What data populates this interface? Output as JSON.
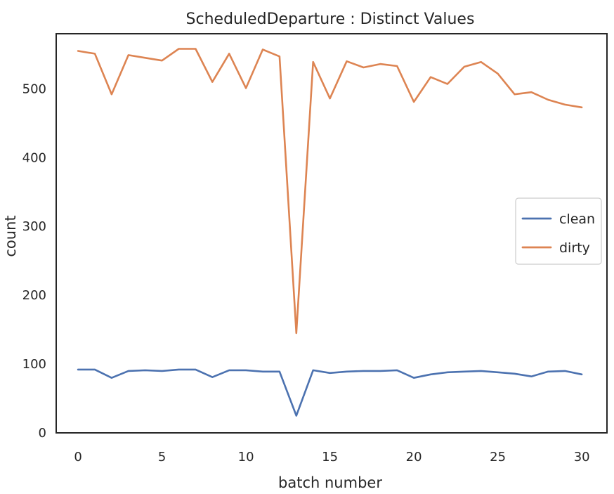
{
  "chart_data": {
    "type": "line",
    "title": "ScheduledDeparture : Distinct Values",
    "xlabel": "batch number",
    "ylabel": "count",
    "xlim": [
      -1.3,
      31.5
    ],
    "ylim": [
      0,
      580
    ],
    "x_ticks": [
      0,
      5,
      10,
      15,
      20,
      25,
      30
    ],
    "y_ticks": [
      0,
      100,
      200,
      300,
      400,
      500
    ],
    "grid": false,
    "legend_position": "center-right",
    "x": [
      0,
      1,
      2,
      3,
      4,
      5,
      6,
      7,
      8,
      9,
      10,
      11,
      12,
      13,
      14,
      15,
      16,
      17,
      18,
      19,
      20,
      21,
      22,
      23,
      24,
      25,
      26,
      27,
      28,
      29,
      30
    ],
    "series": [
      {
        "name": "clean",
        "color": "#4c72b0",
        "values": [
          92,
          92,
          80,
          90,
          91,
          90,
          92,
          92,
          81,
          91,
          91,
          89,
          89,
          25,
          91,
          87,
          89,
          90,
          90,
          91,
          80,
          85,
          88,
          89,
          90,
          88,
          86,
          82,
          89,
          90,
          85
        ]
      },
      {
        "name": "dirty",
        "color": "#dd8452",
        "values": [
          555,
          551,
          492,
          549,
          545,
          541,
          558,
          558,
          510,
          551,
          501,
          557,
          547,
          145,
          539,
          486,
          540,
          531,
          536,
          533,
          481,
          517,
          507,
          532,
          539,
          522,
          492,
          495,
          484,
          477,
          473
        ]
      }
    ]
  }
}
